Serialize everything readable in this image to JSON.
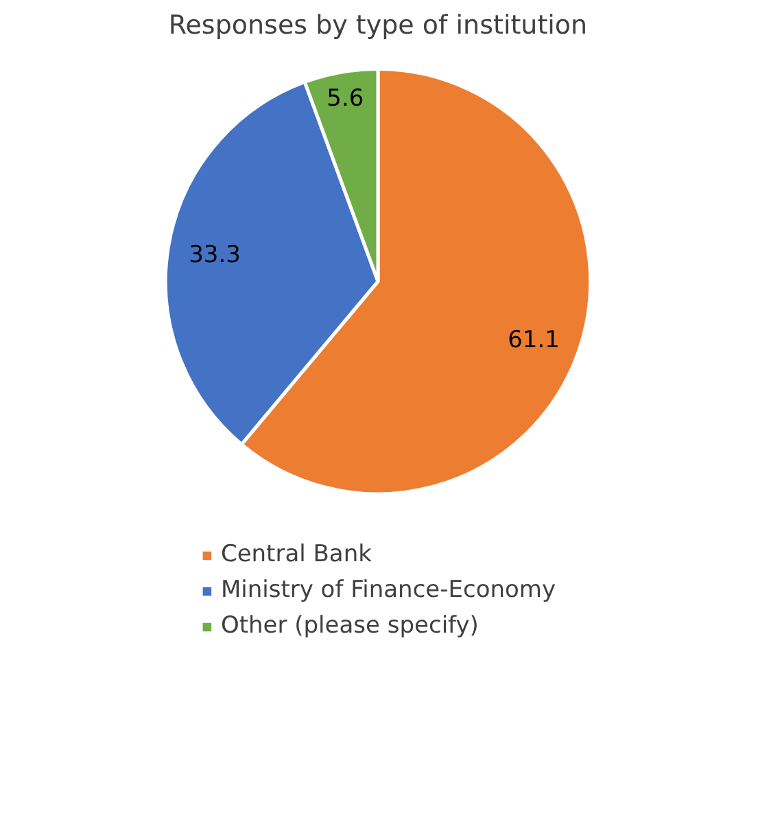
{
  "chart_data": {
    "type": "pie",
    "title": "Responses by type of institution",
    "categories": [
      "Central Bank",
      "Ministry of Finance-Economy",
      "Other (please specify)"
    ],
    "values": [
      61.1,
      33.3,
      5.6
    ],
    "colors": [
      "#ed7d31",
      "#4472c4",
      "#70ad47"
    ],
    "data_labels": true,
    "legend": "bottom"
  }
}
